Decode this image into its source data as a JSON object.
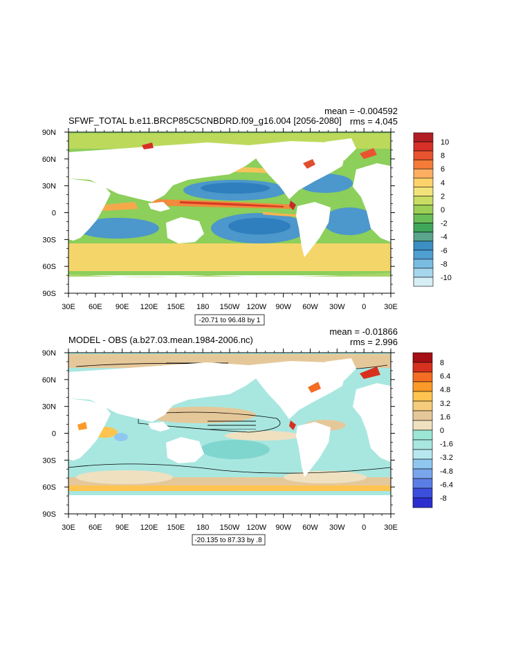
{
  "panels": [
    {
      "title": "SFWF_TOTAL b.e11.BRCP85C5CNBDRD.f09_g16.004 [2056-2080]",
      "mean": "mean = -0.004592",
      "rms": "rms = 4.045",
      "range_label": "-20.71 to 96.48 by 1",
      "colorbar": {
        "ticks": [
          "10",
          "8",
          "6",
          "4",
          "2",
          "0",
          "-2",
          "-4",
          "-6",
          "-8",
          "-10"
        ],
        "colors": [
          "#b11f24",
          "#d73027",
          "#e8542f",
          "#f57c37",
          "#fdae61",
          "#fdd26a",
          "#f2e27a",
          "#c9dc63",
          "#9ccf55",
          "#69bd57",
          "#3fa75a",
          "#5aa58c",
          "#3b8fc2",
          "#4f9fd1",
          "#7bbde2",
          "#a6d6ec",
          "#d7eef7"
        ]
      }
    },
    {
      "title": "MODEL - OBS (a.b27.03.mean.1984-2006.nc)",
      "mean": "mean = -0.01866",
      "rms": "rms = 2.996",
      "range_label": "-20.135 to 87.33 by .8",
      "colorbar": {
        "ticks": [
          "8",
          "6.4",
          "4.8",
          "3.2",
          "1.6",
          "0",
          "-1.6",
          "-3.2",
          "-4.8",
          "-6.4",
          "-8"
        ],
        "colors": [
          "#a50f15",
          "#d7301f",
          "#f46d23",
          "#fb9a29",
          "#fec44f",
          "#f5cc7c",
          "#e5c89a",
          "#efe0c0",
          "#9ce6d6",
          "#a8e7e0",
          "#b7e8f0",
          "#8fc7f0",
          "#79a6eb",
          "#5b7ee6",
          "#3b4fdc",
          "#2b2fcf"
        ]
      }
    }
  ],
  "lon_labels": [
    "30E",
    "60E",
    "90E",
    "120E",
    "150E",
    "180",
    "150W",
    "120W",
    "90W",
    "60W",
    "30W",
    "0",
    "30E"
  ],
  "lat_labels": [
    "90N",
    "60N",
    "30N",
    "0",
    "30S",
    "60S",
    "90S"
  ]
}
